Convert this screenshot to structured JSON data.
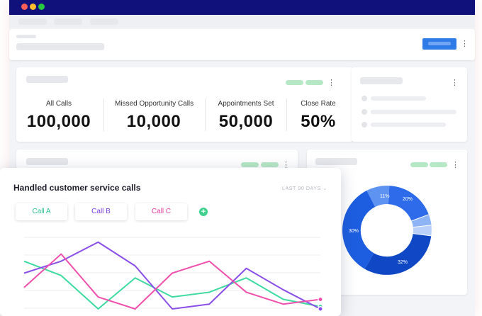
{
  "window": {
    "traffic_lights": {
      "close": "#ff5f57",
      "minimize": "#febc2e",
      "maximize": "#28c840"
    },
    "titlebar_color": "#10117a"
  },
  "stats": [
    {
      "label": "All Calls",
      "value": "100,000"
    },
    {
      "label": "Missed Opportunity Calls",
      "value": "10,000"
    },
    {
      "label": "Appointments Set",
      "value": "50,000"
    },
    {
      "label": "Close Rate",
      "value": "50%"
    }
  ],
  "donut": {
    "slice_labels": [
      "11%",
      "20%",
      "30%",
      "32%"
    ]
  },
  "calls_panel": {
    "title": "Handled customer service calls",
    "range": "LAST 90 DAYS",
    "buttons": [
      {
        "label": "Call A",
        "color": "#2bbf8f"
      },
      {
        "label": "Call B",
        "color": "#7a3fe0"
      },
      {
        "label": "Call C",
        "color": "#e23fa3"
      }
    ],
    "add_label": "+"
  },
  "chart_data": {
    "type": "line",
    "title": "Handled customer service calls",
    "xlabel": "",
    "ylabel": "",
    "grid": true,
    "series": [
      {
        "name": "Call A",
        "color": "#3ddba0",
        "values": [
          20,
          14,
          0,
          13,
          5,
          7,
          13,
          4,
          1
        ]
      },
      {
        "name": "Call B",
        "color": "#8a4ee8",
        "values": [
          15,
          20,
          28,
          18,
          0,
          2,
          17,
          8,
          0
        ]
      },
      {
        "name": "Call C",
        "color": "#f050ad",
        "values": [
          9,
          23,
          5,
          0,
          15,
          20,
          7,
          2,
          4
        ]
      }
    ]
  }
}
